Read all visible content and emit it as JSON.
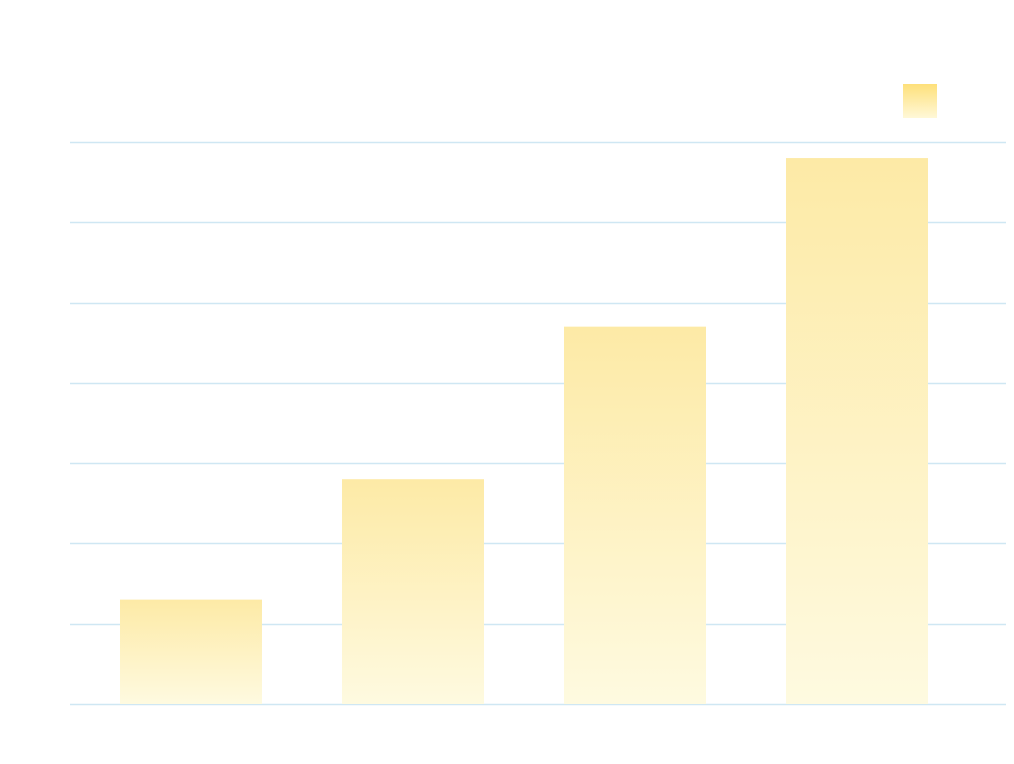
{
  "chart_data": {
    "type": "bar",
    "categories": [
      "",
      "",
      "",
      ""
    ],
    "series": [
      {
        "values": [
          13,
          28,
          47,
          68
        ]
      }
    ],
    "ylim": [
      0,
      70
    ],
    "grid": true,
    "legend_placement": "top-right",
    "colors": {
      "bar_top": "#fdeaa6",
      "bar_bottom": "#fefae0",
      "legend_top": "#fee07a",
      "legend_bottom": "#fff8d8",
      "grid": "#cfe7f3"
    }
  }
}
